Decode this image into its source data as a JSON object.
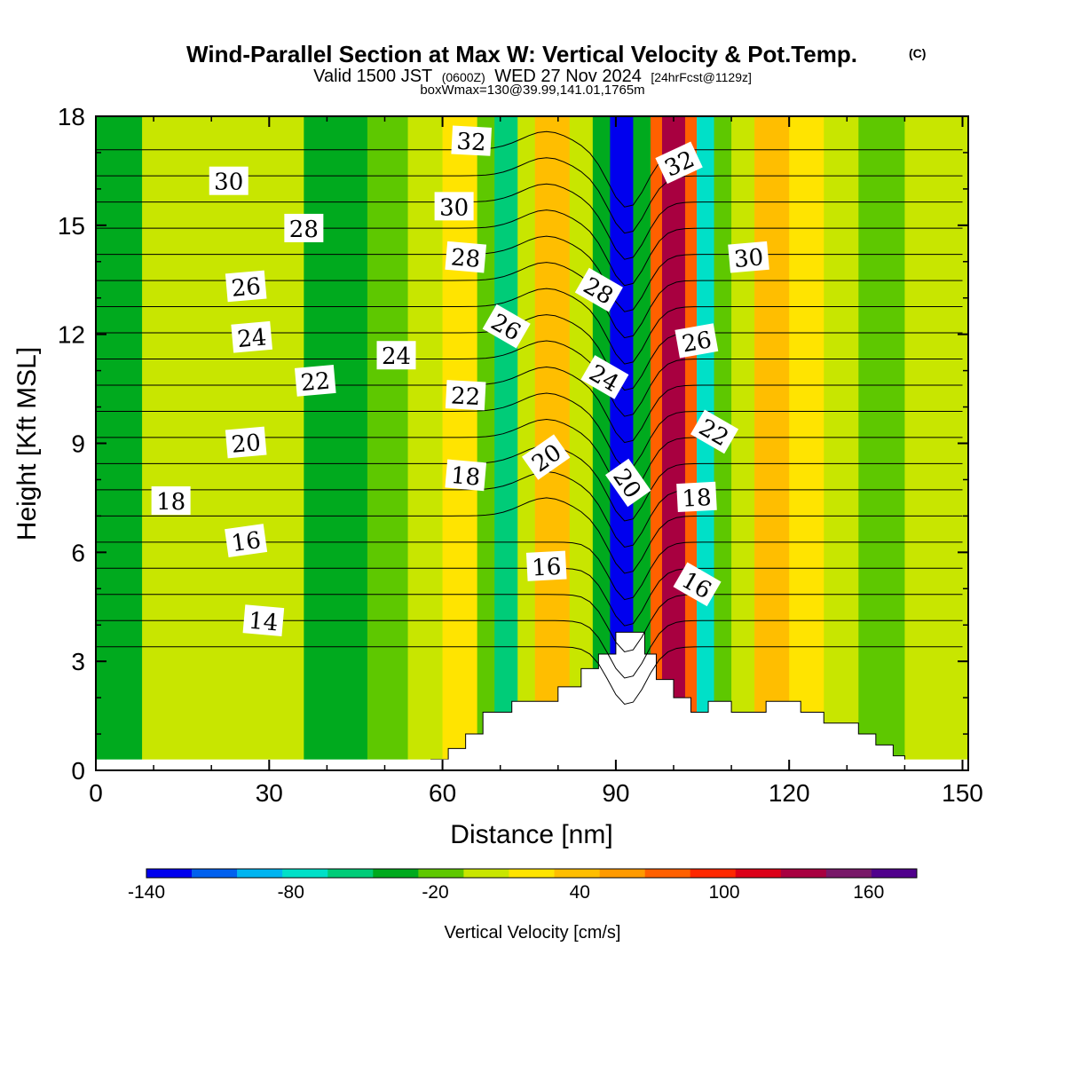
{
  "title": {
    "main": "Wind-Parallel Section at Max W: Vertical Velocity & Pot.Temp.",
    "copyright": "(C)",
    "valid_prefix": "Valid 1500 JST",
    "valid_z": "(0600Z)",
    "valid_date": "WED 27 Nov 2024",
    "valid_fcst": "[24hrFcst@1129z]",
    "box_info": "boxWmax=130@39.99,141.01,1765m"
  },
  "chart_data": {
    "type": "heatmap",
    "xlabel": "Distance [nm]",
    "ylabel": "Height [Kft MSL]",
    "xlim": [
      0,
      151
    ],
    "ylim": [
      0,
      18
    ],
    "xticks": [
      "0",
      "30",
      "60",
      "90",
      "120",
      "150"
    ],
    "yticks": [
      "0",
      "3",
      "6",
      "9",
      "12",
      "15",
      "18"
    ],
    "colorbar": {
      "label": "Vertical Velocity [cm/s]",
      "levels": [
        -140,
        -120,
        -100,
        -80,
        -60,
        -40,
        -20,
        0,
        20,
        40,
        60,
        80,
        100,
        120,
        140,
        160,
        180
      ],
      "tick_labels": [
        "-140",
        "-80",
        "-20",
        "40",
        "100",
        "160"
      ],
      "colors": [
        "#0000ee",
        "#0060ee",
        "#00b4f0",
        "#00e0c8",
        "#00cc78",
        "#00aa1e",
        "#5ec800",
        "#c8e600",
        "#ffe400",
        "#ffbe00",
        "#ff9a00",
        "#ff6000",
        "#ff2800",
        "#dc0018",
        "#a80040",
        "#781868",
        "#50008c"
      ]
    },
    "columns": [
      {
        "x": [
          0,
          8
        ],
        "value": -25
      },
      {
        "x": [
          8,
          24
        ],
        "value": 10
      },
      {
        "x": [
          24,
          36
        ],
        "value": 5
      },
      {
        "x": [
          36,
          47
        ],
        "value": -40
      },
      {
        "x": [
          47,
          54
        ],
        "value": -10
      },
      {
        "x": [
          54,
          60
        ],
        "value": 10
      },
      {
        "x": [
          60,
          66
        ],
        "value": 30
      },
      {
        "x": [
          66,
          69
        ],
        "value": -10
      },
      {
        "x": [
          69,
          73
        ],
        "value": -55
      },
      {
        "x": [
          73,
          76
        ],
        "value": 10
      },
      {
        "x": [
          76,
          82
        ],
        "value": 45
      },
      {
        "x": [
          82,
          86
        ],
        "value": 15
      },
      {
        "x": [
          86,
          89
        ],
        "value": -40
      },
      {
        "x": [
          89,
          93
        ],
        "value": -130
      },
      {
        "x": [
          93,
          96
        ],
        "value": -40
      },
      {
        "x": [
          96,
          98
        ],
        "value": 80
      },
      {
        "x": [
          98,
          102
        ],
        "value": 150
      },
      {
        "x": [
          102,
          104
        ],
        "value": 80
      },
      {
        "x": [
          104,
          107
        ],
        "value": -70
      },
      {
        "x": [
          107,
          110
        ],
        "value": -20
      },
      {
        "x": [
          110,
          114
        ],
        "value": 10
      },
      {
        "x": [
          114,
          120
        ],
        "value": 45
      },
      {
        "x": [
          120,
          126
        ],
        "value": 30
      },
      {
        "x": [
          126,
          132
        ],
        "value": 10
      },
      {
        "x": [
          132,
          140
        ],
        "value": -10
      },
      {
        "x": [
          140,
          151
        ],
        "value": 10
      }
    ],
    "terrain": [
      {
        "x": 58,
        "h": 0.3
      },
      {
        "x": 61,
        "h": 0.6
      },
      {
        "x": 64,
        "h": 1.0
      },
      {
        "x": 67,
        "h": 1.6
      },
      {
        "x": 72,
        "h": 1.9
      },
      {
        "x": 80,
        "h": 2.3
      },
      {
        "x": 84,
        "h": 2.8
      },
      {
        "x": 87,
        "h": 3.2
      },
      {
        "x": 90,
        "h": 3.8
      },
      {
        "x": 93,
        "h": 3.8
      },
      {
        "x": 95,
        "h": 3.2
      },
      {
        "x": 97,
        "h": 2.5
      },
      {
        "x": 100,
        "h": 2.0
      },
      {
        "x": 103,
        "h": 1.6
      },
      {
        "x": 106,
        "h": 1.9
      },
      {
        "x": 110,
        "h": 1.6
      },
      {
        "x": 116,
        "h": 1.9
      },
      {
        "x": 122,
        "h": 1.6
      },
      {
        "x": 126,
        "h": 1.3
      },
      {
        "x": 132,
        "h": 1.0
      },
      {
        "x": 135,
        "h": 0.7
      },
      {
        "x": 138,
        "h": 0.4
      },
      {
        "x": 140,
        "h": 0.3
      }
    ],
    "isentropes": {
      "levels": [
        14,
        15,
        16,
        17,
        18,
        19,
        20,
        21,
        22,
        23,
        24,
        25,
        26,
        27,
        28,
        29,
        30,
        31,
        32,
        33
      ],
      "labels": [
        {
          "text": "14",
          "x": 29,
          "y": 4.1,
          "angle": 5
        },
        {
          "text": "16",
          "x": 26,
          "y": 6.3,
          "angle": -8
        },
        {
          "text": "16",
          "x": 78,
          "y": 5.6,
          "angle": -3
        },
        {
          "text": "16",
          "x": 104,
          "y": 5.1,
          "angle": 30
        },
        {
          "text": "18",
          "x": 13,
          "y": 7.4,
          "angle": 0
        },
        {
          "text": "18",
          "x": 64,
          "y": 8.1,
          "angle": 5
        },
        {
          "text": "18",
          "x": 104,
          "y": 7.5,
          "angle": -3
        },
        {
          "text": "20",
          "x": 26,
          "y": 9.0,
          "angle": -5
        },
        {
          "text": "20",
          "x": 78,
          "y": 8.6,
          "angle": -35
        },
        {
          "text": "20",
          "x": 92,
          "y": 7.9,
          "angle": 55
        },
        {
          "text": "22",
          "x": 38,
          "y": 10.7,
          "angle": -5
        },
        {
          "text": "22",
          "x": 64,
          "y": 10.3,
          "angle": 3
        },
        {
          "text": "22",
          "x": 107,
          "y": 9.3,
          "angle": 30
        },
        {
          "text": "24",
          "x": 27,
          "y": 11.9,
          "angle": -5
        },
        {
          "text": "24",
          "x": 52,
          "y": 11.4,
          "angle": 0
        },
        {
          "text": "24",
          "x": 88,
          "y": 10.8,
          "angle": 30
        },
        {
          "text": "26",
          "x": 26,
          "y": 13.3,
          "angle": -5
        },
        {
          "text": "26",
          "x": 71,
          "y": 12.2,
          "angle": 30
        },
        {
          "text": "26",
          "x": 104,
          "y": 11.8,
          "angle": -10
        },
        {
          "text": "28",
          "x": 36,
          "y": 14.9,
          "angle": 0
        },
        {
          "text": "28",
          "x": 64,
          "y": 14.1,
          "angle": 5
        },
        {
          "text": "28",
          "x": 87,
          "y": 13.2,
          "angle": 30
        },
        {
          "text": "30",
          "x": 23,
          "y": 16.2,
          "angle": 0
        },
        {
          "text": "30",
          "x": 62,
          "y": 15.5,
          "angle": 0
        },
        {
          "text": "30",
          "x": 113,
          "y": 14.1,
          "angle": -5
        },
        {
          "text": "32",
          "x": 65,
          "y": 17.3,
          "angle": 3
        },
        {
          "text": "32",
          "x": 101,
          "y": 16.7,
          "angle": -25
        }
      ]
    }
  }
}
